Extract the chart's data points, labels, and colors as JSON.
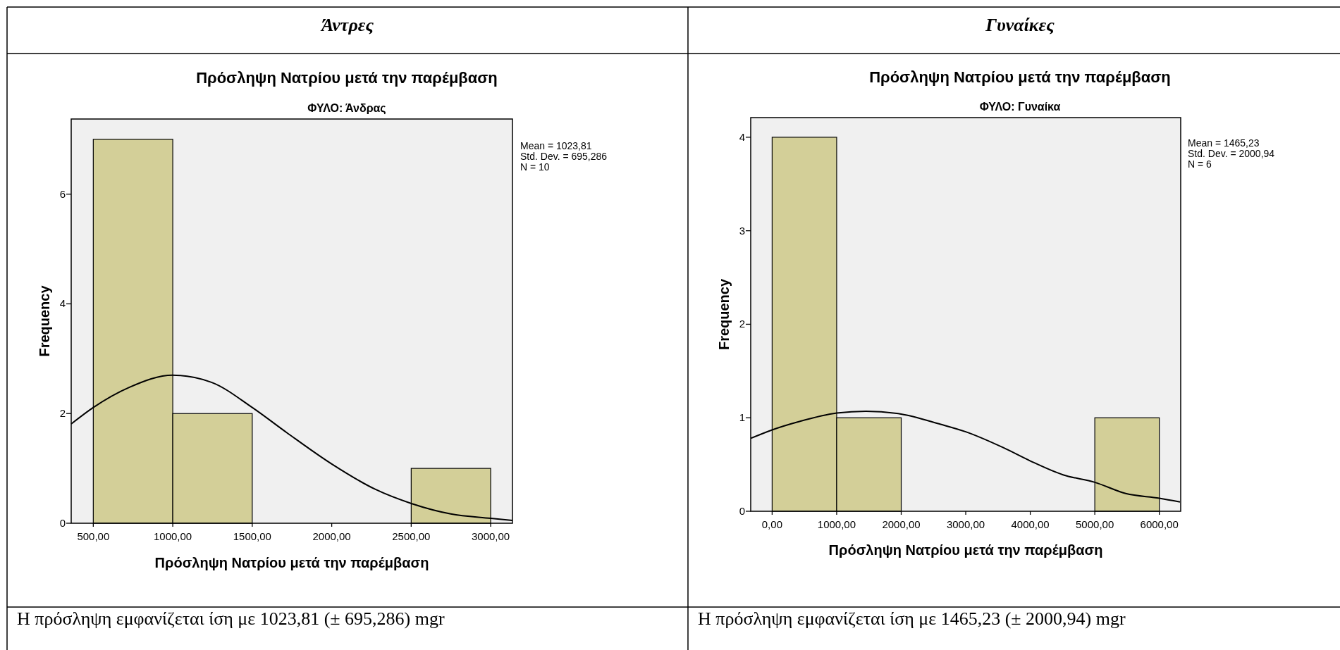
{
  "chart_data": [
    {
      "type": "histogram",
      "title": "Πρόσληψη Νατρίου μετά την παρέμβαση",
      "subtitle": "ΦΥΛΟ: Άνδρας",
      "xlabel": "Πρόσληψη Νατρίου μετά την παρέμβαση",
      "ylabel": "Frequency",
      "annotations": [
        "Άντρες",
        "Mean = 1023,81",
        "Std. Dev. = 695,286",
        "N = 10",
        "Η πρόσληψη εμφανίζεται ίση με 1023,81 (± 695,286) mgr"
      ],
      "bins": [
        500,
        1000,
        1500,
        2000,
        2500,
        3000
      ],
      "series": [
        {
          "color": "#d3cf98",
          "values": [
            7,
            2,
            0,
            0,
            1
          ]
        },
        {
          "type": "line",
          "color": "#000000",
          "x": [
            361,
            500,
            728,
            999,
            1243,
            1500,
            1718,
            2000,
            2273,
            2501,
            2749,
            3000,
            3137
          ],
          "values": [
            1.81,
            2.11,
            2.48,
            2.7,
            2.57,
            2.11,
            1.65,
            1.08,
            0.62,
            0.36,
            0.17,
            0.09,
            0.05
          ]
        }
      ],
      "xlim": [
        361,
        3137
      ],
      "xticks": [
        {
          "value": 500,
          "label": "500,00"
        },
        {
          "value": 1000,
          "label": "1000,00"
        },
        {
          "value": 1500,
          "label": "1500,00"
        },
        {
          "value": 2000,
          "label": "2000,00"
        },
        {
          "value": 2500,
          "label": "2500,00"
        },
        {
          "value": 3000,
          "label": "3000,00"
        }
      ],
      "ylim": [
        0,
        7.37
      ],
      "yticks": [
        0,
        2,
        4,
        6
      ]
    },
    {
      "type": "histogram",
      "title": "Πρόσληψη Νατρίου μετά την παρέμβαση",
      "subtitle": "ΦΥΛΟ: Γυναίκα",
      "xlabel": "Πρόσληψη Νατρίου μετά την παρέμβαση",
      "ylabel": "Frequency",
      "annotations": [
        "Γυναίκες",
        "Mean = 1465,23",
        "Std. Dev. = 2000,94",
        "N = 6",
        "Η πρόσληψη εμφανίζεται ίση με 1465,23 (± 2000,94) mgr"
      ],
      "bins": [
        0,
        1000,
        2000,
        3000,
        4000,
        5000,
        6000
      ],
      "series": [
        {
          "color": "#d3cf98",
          "values": [
            4,
            1,
            0,
            0,
            0,
            1
          ]
        },
        {
          "type": "line",
          "color": "#000000",
          "x": [
            -331,
            0,
            423,
            1001,
            1454,
            1998,
            2611,
            3000,
            3583,
            3996,
            4507,
            5000,
            5479,
            6000,
            6320
          ],
          "values": [
            0.78,
            0.87,
            0.96,
            1.05,
            1.07,
            1.04,
            0.93,
            0.85,
            0.68,
            0.54,
            0.39,
            0.31,
            0.19,
            0.14,
            0.1
          ]
        }
      ],
      "xlim": [
        -332,
        6331
      ],
      "xticks": [
        {
          "value": 0,
          "label": "0,00"
        },
        {
          "value": 1000,
          "label": "1000,00"
        },
        {
          "value": 2000,
          "label": "2000,00"
        },
        {
          "value": 3000,
          "label": "3000,00"
        },
        {
          "value": 4000,
          "label": "4000,00"
        },
        {
          "value": 5000,
          "label": "5000,00"
        },
        {
          "value": 6000,
          "label": "6000,00"
        }
      ],
      "ylim": [
        0,
        4.21
      ],
      "yticks": [
        0,
        1,
        2,
        3,
        4
      ]
    }
  ]
}
